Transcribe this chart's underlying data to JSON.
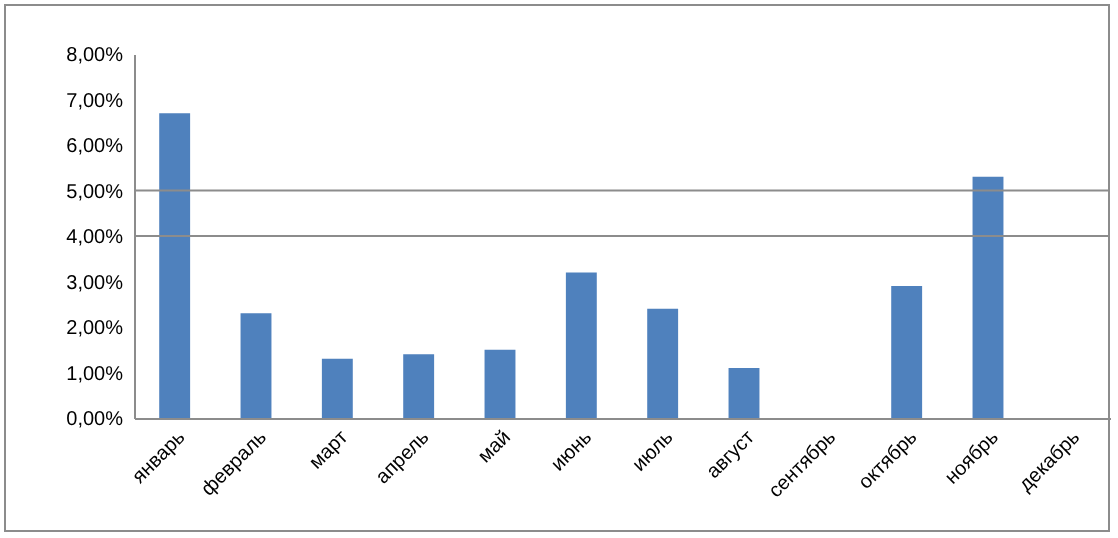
{
  "chart_data": {
    "type": "bar",
    "categories": [
      "январь",
      "февраль",
      "март",
      "апрель",
      "май",
      "июнь",
      "июль",
      "август",
      "сентябрь",
      "октябрь",
      "ноябрь",
      "декабрь"
    ],
    "values": [
      6.7,
      2.3,
      1.3,
      1.4,
      1.5,
      3.2,
      2.4,
      1.1,
      0,
      2.9,
      5.3,
      0
    ],
    "color": "#4f81bd",
    "ylim": [
      0,
      8
    ],
    "yticks": [
      {
        "value": 0,
        "label": "0,00%"
      },
      {
        "value": 1,
        "label": "1,00%"
      },
      {
        "value": 2,
        "label": "2,00%"
      },
      {
        "value": 3,
        "label": "3,00%"
      },
      {
        "value": 4,
        "label": "4,00%"
      },
      {
        "value": 5,
        "label": "5,00%"
      },
      {
        "value": 6,
        "label": "6,00%"
      },
      {
        "value": 7,
        "label": "7,00%"
      },
      {
        "value": 8,
        "label": "8,00%"
      }
    ],
    "ref_lines": [
      {
        "axis": "y",
        "value": 4,
        "color": "#8c8c8c"
      },
      {
        "axis": "y",
        "value": 5,
        "color": "#8c8c8c"
      }
    ],
    "grid": false
  }
}
